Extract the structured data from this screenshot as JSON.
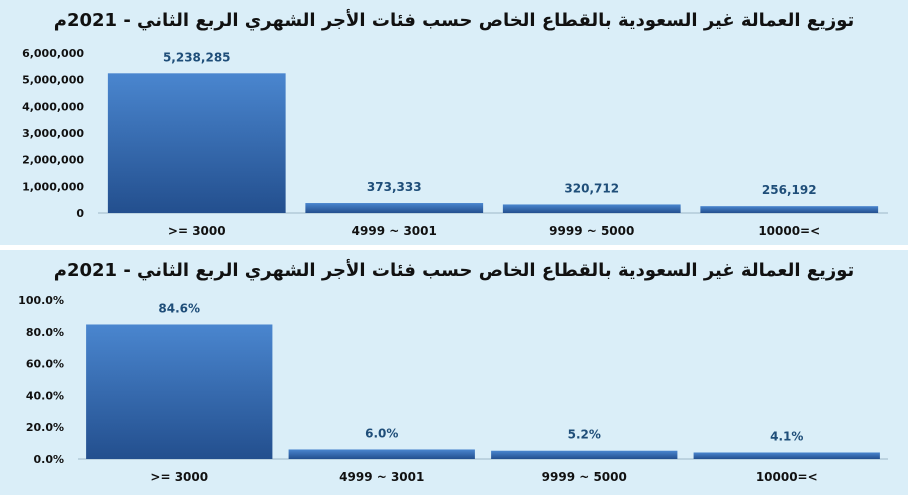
{
  "chart_data": [
    {
      "type": "bar",
      "title": "توزيع العمالة غير السعودية بالقطاع الخاص حسب فئات الأجر الشهري الربع الثاني - 2021م",
      "categories": [
        ">= 3000",
        "4999 ~ 3001",
        "9999 ~ 5000",
        "10000=<"
      ],
      "values": [
        5238285,
        373333,
        320712,
        256192
      ],
      "data_labels": [
        "5,238,285",
        "373,333",
        "320,712",
        "256,192"
      ],
      "yticks": [
        0,
        1000000,
        2000000,
        3000000,
        4000000,
        5000000,
        6000000
      ],
      "ytick_labels": [
        "0",
        "1,000,000",
        "2,000,000",
        "3,000,000",
        "4,000,000",
        "5,000,000",
        "6,000,000"
      ],
      "ylim": [
        0,
        6000000
      ],
      "xlabel": "",
      "ylabel": "",
      "grid": false,
      "bar_color": "#2e63a8"
    },
    {
      "type": "bar",
      "title": "توزيع العمالة غير السعودية بالقطاع الخاص حسب فئات الأجر الشهري الربع الثاني - 2021م",
      "categories": [
        ">= 3000",
        "4999 ~ 3001",
        "9999 ~ 5000",
        "10000=<"
      ],
      "values": [
        84.6,
        6.0,
        5.2,
        4.1
      ],
      "data_labels": [
        "84.6%",
        "6.0%",
        "5.2%",
        "4.1%"
      ],
      "yticks": [
        0,
        20,
        40,
        60,
        80,
        100
      ],
      "ytick_labels": [
        "0.0%",
        "20.0%",
        "40.0%",
        "60.0%",
        "80.0%",
        "100.0%"
      ],
      "ylim": [
        0,
        100
      ],
      "xlabel": "",
      "ylabel": "",
      "grid": false,
      "bar_color": "#2e63a8"
    }
  ]
}
